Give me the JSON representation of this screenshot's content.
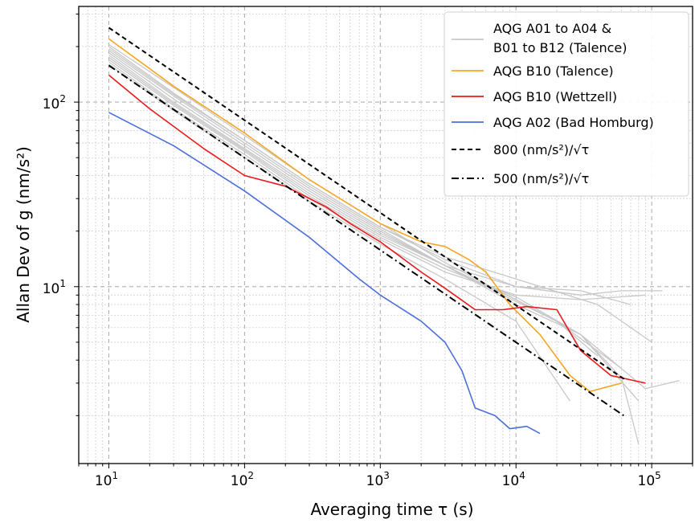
{
  "chart_data": {
    "type": "line",
    "x_scale": "log",
    "y_scale": "log",
    "xlabel": "Averaging time τ (s)",
    "ylabel": "Allan Dev of g (nm/s²)",
    "xlim": [
      6,
      200000
    ],
    "ylim": [
      1.1,
      330
    ],
    "grid": true,
    "legend_position": "top-right",
    "x_ticks": [
      {
        "value": 10,
        "base": "10",
        "exp": "1"
      },
      {
        "value": 100,
        "base": "10",
        "exp": "2"
      },
      {
        "value": 1000,
        "base": "10",
        "exp": "3"
      },
      {
        "value": 10000,
        "base": "10",
        "exp": "4"
      },
      {
        "value": 100000,
        "base": "10",
        "exp": "5"
      }
    ],
    "y_ticks": [
      {
        "value": 10,
        "base": "10",
        "exp": "1"
      },
      {
        "value": 100,
        "base": "10",
        "exp": "2"
      }
    ],
    "series": [
      {
        "group": "AQG A01 to A04 & B01 to B12 (Talence)",
        "color": "#c8c8c8",
        "x": [
          10,
          30,
          100,
          300,
          1000,
          3000,
          10000,
          20000,
          40000
        ],
        "y": [
          205,
          120,
          66,
          38,
          22,
          13.5,
          8.5,
          6.5,
          4.2
        ]
      },
      {
        "group": "AQG A01 to A04 & B01 to B12 (Talence)",
        "color": "#c8c8c8",
        "x": [
          10,
          30,
          100,
          300,
          1000,
          3000,
          8000,
          20000,
          60000
        ],
        "y": [
          190,
          108,
          60,
          35,
          20.5,
          13,
          9,
          6.5,
          3.6
        ]
      },
      {
        "group": "AQG A01 to A04 & B01 to B12 (Talence)",
        "color": "#c8c8c8",
        "x": [
          10,
          30,
          100,
          300,
          1000,
          3000,
          10000,
          30000,
          60000,
          80000
        ],
        "y": [
          180,
          100,
          56,
          33,
          19.5,
          13,
          8.5,
          5.5,
          3.2,
          1.4
        ]
      },
      {
        "group": "AQG A01 to A04 & B01 to B12 (Talence)",
        "color": "#c8c8c8",
        "x": [
          10,
          30,
          100,
          300,
          1000,
          3000,
          10000,
          30000,
          80000
        ],
        "y": [
          170,
          96,
          54,
          31,
          18.5,
          12.5,
          8.8,
          5.5,
          2.4
        ]
      },
      {
        "group": "AQG A01 to A04 & B01 to B12 (Talence)",
        "color": "#c8c8c8",
        "x": [
          10,
          30,
          100,
          300,
          1000,
          3000,
          10000,
          30000,
          90000
        ],
        "y": [
          165,
          92,
          52,
          30,
          18,
          12,
          9,
          8.5,
          9
        ]
      },
      {
        "group": "AQG A01 to A04 & B01 to B12 (Talence)",
        "color": "#c8c8c8",
        "x": [
          10,
          30,
          100,
          300,
          1000,
          3000,
          10000,
          30000,
          60000,
          120000
        ],
        "y": [
          175,
          98,
          55,
          32,
          19,
          13,
          10,
          9,
          9.5,
          9.5
        ]
      },
      {
        "group": "AQG A01 to A04 & B01 to B12 (Talence)",
        "color": "#c8c8c8",
        "x": [
          10,
          30,
          100,
          300,
          1000,
          3000,
          10000,
          30000,
          70000
        ],
        "y": [
          200,
          112,
          62,
          36,
          21,
          14,
          10,
          9.5,
          8
        ]
      },
      {
        "group": "AQG A01 to A04 & B01 to B12 (Talence)",
        "color": "#c8c8c8",
        "x": [
          10,
          30,
          100,
          300,
          1000,
          3000,
          10000,
          30000,
          90000,
          160000
        ],
        "y": [
          185,
          104,
          58,
          34,
          20,
          13,
          8,
          5.5,
          2.8,
          3.1
        ]
      },
      {
        "group": "AQG A01 to A04 & B01 to B12 (Talence)",
        "color": "#c8c8c8",
        "x": [
          10,
          30,
          100,
          300,
          1000,
          3000,
          10000,
          25000
        ],
        "y": [
          160,
          90,
          50,
          29,
          17,
          11,
          6.5,
          2.4
        ]
      },
      {
        "group": "AQG A01 to A04 & B01 to B12 (Talence)",
        "color": "#c8c8c8",
        "x": [
          10,
          30,
          100,
          300,
          1000,
          3000,
          10000,
          40000,
          100000
        ],
        "y": [
          195,
          110,
          62,
          36,
          21,
          14.5,
          11,
          8,
          5
        ]
      },
      {
        "name": "AQG B10 (Talence)",
        "color": "#f5a623",
        "x": [
          10,
          30,
          100,
          300,
          1000,
          2000,
          3000,
          4500,
          6000,
          9000,
          15000,
          25000,
          35000,
          50000,
          60000
        ],
        "y": [
          220,
          122,
          68,
          38,
          22,
          17.5,
          16.5,
          14,
          12,
          8,
          5.5,
          3.3,
          2.7,
          2.9,
          3.0
        ]
      },
      {
        "name": "AQG B10 (Wettzell)",
        "color": "#e8191a",
        "x": [
          10,
          20,
          50,
          100,
          200,
          400,
          600,
          1000,
          2000,
          3000,
          5000,
          8000,
          12000,
          20000,
          30000,
          50000,
          90000
        ],
        "y": [
          140,
          92,
          56,
          40,
          35,
          27,
          22,
          17.5,
          12,
          9.8,
          7.5,
          7.5,
          7.8,
          7.5,
          4.5,
          3.3,
          3.0
        ]
      },
      {
        "name": "AQG A02 (Bad Homburg)",
        "color": "#4b6fd8",
        "x": [
          10,
          30,
          100,
          300,
          700,
          1000,
          2000,
          3000,
          4000,
          5000,
          7000,
          9000,
          12000,
          15000
        ],
        "y": [
          88,
          58,
          33,
          18.5,
          11,
          9,
          6.5,
          5,
          3.5,
          2.2,
          2.0,
          1.7,
          1.75,
          1.6
        ]
      },
      {
        "name": "800 (nm/s²)/√τ",
        "color": "#000000",
        "style": "dashed",
        "x": [
          10,
          65000
        ],
        "y": [
          253,
          3.1
        ]
      },
      {
        "name": "500 (nm/s²)/√τ",
        "color": "#000000",
        "style": "dashdot",
        "x": [
          10,
          65000
        ],
        "y": [
          158,
          1.96
        ]
      }
    ],
    "legend": [
      {
        "line1": "AQG A01 to A04 &",
        "line2": " B01 to B12 (Talence)",
        "color": "#c8c8c8",
        "style": "solid"
      },
      {
        "line1": "AQG B10 (Talence)",
        "color": "#f5a623",
        "style": "solid"
      },
      {
        "line1": "AQG B10 (Wettzell)",
        "color": "#e8191a",
        "style": "solid"
      },
      {
        "line1": "AQG A02 (Bad Homburg)",
        "color": "#4b6fd8",
        "style": "solid"
      },
      {
        "line1": "800 (nm/s²)/√τ",
        "color": "#000000",
        "style": "dashed"
      },
      {
        "line1": "500 (nm/s²)/√τ",
        "color": "#000000",
        "style": "dashdot"
      }
    ]
  }
}
